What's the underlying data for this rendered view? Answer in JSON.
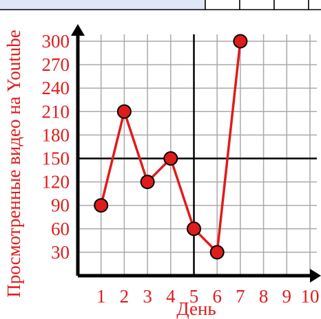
{
  "chart_data": {
    "type": "line",
    "x": [
      1,
      2,
      3,
      4,
      5,
      6,
      7
    ],
    "series": [
      {
        "values": [
          90,
          210,
          120,
          150,
          60,
          30,
          300
        ]
      }
    ],
    "x_ticks": [
      "1",
      "2",
      "3",
      "4",
      "5",
      "6",
      "7",
      "8",
      "9",
      "10"
    ],
    "y_ticks": [
      "30",
      "60",
      "90",
      "120",
      "150",
      "180",
      "210",
      "240",
      "270",
      "300"
    ],
    "xlabel": "День",
    "ylabel": "Просмотренные видео на Youtube",
    "xlim": [
      0,
      10
    ],
    "ylim": [
      0,
      300
    ],
    "grid": true,
    "reference_lines": {
      "x": 5,
      "y": 150
    },
    "colors": {
      "series": "#e01b1b",
      "marker_fill": "#e01b1b",
      "text": "#e01b1b",
      "grid": "#a9a9a9",
      "axis": "#000000",
      "top_table_fill": "#dfe6f7"
    }
  }
}
